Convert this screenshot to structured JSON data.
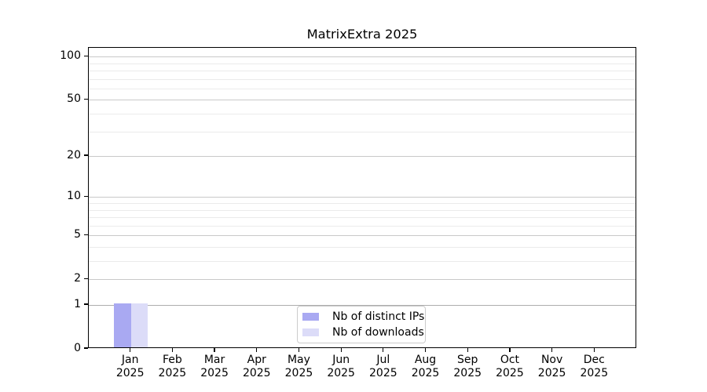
{
  "chart_data": {
    "type": "bar",
    "title": "MatrixExtra 2025",
    "categories": [
      "Jan 2025",
      "Feb 2025",
      "Mar 2025",
      "Apr 2025",
      "May 2025",
      "Jun 2025",
      "Jul 2025",
      "Aug 2025",
      "Sep 2025",
      "Oct 2025",
      "Nov 2025",
      "Dec 2025"
    ],
    "series": [
      {
        "name": "Nb of distinct IPs",
        "color": "#a9a9f2",
        "values": [
          1,
          0,
          0,
          0,
          0,
          0,
          0,
          0,
          0,
          0,
          0,
          0
        ]
      },
      {
        "name": "Nb of downloads",
        "color": "#dcdcf8",
        "values": [
          1,
          0,
          0,
          0,
          0,
          0,
          0,
          0,
          0,
          0,
          0,
          0
        ]
      }
    ],
    "y_axis": {
      "scale": "log1p",
      "ticks": [
        0,
        1,
        2,
        5,
        10,
        20,
        50,
        100
      ],
      "minor_gridlines": [
        3,
        4,
        6,
        7,
        8,
        9,
        30,
        40,
        60,
        70,
        80,
        90
      ],
      "emphasized_gridline": 1,
      "ylim": [
        0,
        115
      ]
    },
    "x_axis": {
      "tick_years": "2025"
    },
    "legend": {
      "position": "lower center",
      "border_color": "#cbcbcb"
    },
    "grid": true,
    "colors": {
      "axis": "#000000",
      "grid_major": "#c9c9c9",
      "grid_minor": "#ebebeb"
    }
  }
}
